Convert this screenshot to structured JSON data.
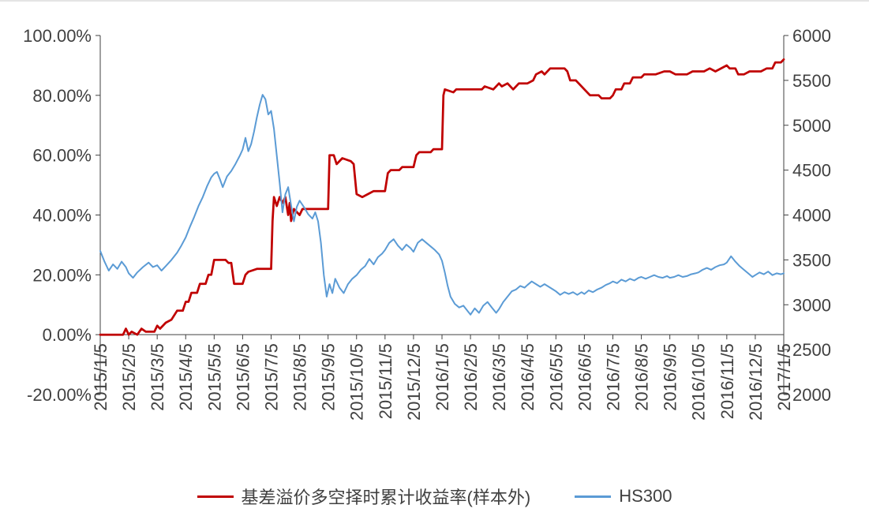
{
  "chart_data": {
    "type": "line",
    "title": "",
    "grid": false,
    "legend_position": "bottom",
    "x_axis": {
      "unit": "months from 2015/1/5",
      "range": [
        0,
        24
      ],
      "tick_labels": [
        "2015/1/5",
        "2015/2/5",
        "2015/3/5",
        "2015/4/5",
        "2015/5/5",
        "2015/6/5",
        "2015/7/5",
        "2015/8/5",
        "2015/9/5",
        "2015/10/5",
        "2015/11/5",
        "2015/12/5",
        "2016/1/5",
        "2016/2/5",
        "2016/3/5",
        "2016/4/5",
        "2016/5/5",
        "2016/6/5",
        "2016/7/5",
        "2016/8/5",
        "2016/9/5",
        "2016/10/5",
        "2016/11/5",
        "2016/12/5",
        "2017/1/5"
      ]
    },
    "y_left_axis": {
      "range": [
        -20,
        100
      ],
      "tick_values": [
        100,
        80,
        60,
        40,
        20,
        0,
        -20
      ],
      "tick_labels": [
        "100.00%",
        "80.00%",
        "60.00%",
        "40.00%",
        "20.00%",
        "0.00%",
        "-20.00%"
      ]
    },
    "y_right_axis": {
      "range": [
        2000,
        6000
      ],
      "tick_values": [
        6000,
        5500,
        5000,
        4500,
        4000,
        3500,
        3000,
        2500,
        2000
      ],
      "tick_labels": [
        "6000",
        "5500",
        "5000",
        "4500",
        "4000",
        "3500",
        "3000",
        "2500",
        "2000"
      ]
    },
    "series": [
      {
        "name": "基差溢价多空择时累计收益率(样本外)",
        "axis": "left",
        "unit": "%",
        "color": "#C00000",
        "line_width": 2.75,
        "x": [
          0,
          0.8,
          0.9,
          1.0,
          1.1,
          1.3,
          1.45,
          1.6,
          1.9,
          2.0,
          2.1,
          2.3,
          2.5,
          2.7,
          2.9,
          3.0,
          3.1,
          3.2,
          3.4,
          3.5,
          3.7,
          3.8,
          3.9,
          4.0,
          4.4,
          4.5,
          4.6,
          4.7,
          5.0,
          5.1,
          5.2,
          5.5,
          6.0,
          6.05,
          6.1,
          6.2,
          6.3,
          6.4,
          6.5,
          6.6,
          6.65,
          6.7,
          6.8,
          7.0,
          7.1,
          8.0,
          8.05,
          8.2,
          8.3,
          8.5,
          8.8,
          8.9,
          9.0,
          9.2,
          9.4,
          9.6,
          10.0,
          10.1,
          10.2,
          10.5,
          10.6,
          11.0,
          11.1,
          11.2,
          11.6,
          11.7,
          12.0,
          12.05,
          12.1,
          12.4,
          12.5,
          13.0,
          13.4,
          13.5,
          13.8,
          14.0,
          14.1,
          14.3,
          14.5,
          14.7,
          15.0,
          15.2,
          15.3,
          15.5,
          15.6,
          15.8,
          16.0,
          16.3,
          16.4,
          16.5,
          16.7,
          16.8,
          17.0,
          17.2,
          17.5,
          17.6,
          17.9,
          18.0,
          18.1,
          18.3,
          18.4,
          18.6,
          18.7,
          19.0,
          19.1,
          19.5,
          19.8,
          20.0,
          20.2,
          20.6,
          20.8,
          21.2,
          21.4,
          21.6,
          22.0,
          22.1,
          22.3,
          22.4,
          22.6,
          22.8,
          23.2,
          23.4,
          23.6,
          23.7,
          23.9,
          24.0
        ],
        "y": [
          0,
          0,
          2,
          0,
          1,
          0,
          2,
          1,
          1,
          3,
          2,
          4,
          5,
          8,
          8,
          11,
          11,
          14,
          14,
          17,
          17,
          20,
          20,
          25,
          25,
          24,
          24,
          17,
          17,
          20,
          21,
          22,
          22,
          38,
          46,
          43,
          46,
          44,
          46,
          40,
          44,
          38,
          42,
          40,
          42,
          42,
          60,
          60,
          57,
          59,
          58,
          57,
          47,
          46,
          47,
          48,
          48,
          54,
          55,
          55,
          56,
          56,
          60,
          61,
          61,
          62,
          62,
          80,
          82,
          81,
          82,
          82,
          82,
          83,
          82,
          84,
          83,
          84,
          82,
          84,
          84,
          85,
          87,
          88,
          87,
          89,
          89,
          89,
          88,
          85,
          85,
          84,
          82,
          80,
          80,
          79,
          79,
          80,
          82,
          82,
          84,
          84,
          86,
          86,
          87,
          87,
          88,
          88,
          87,
          87,
          88,
          88,
          89,
          88,
          90,
          89,
          89,
          87,
          87,
          88,
          88,
          89,
          89,
          91,
          91,
          92
        ]
      },
      {
        "name": "HS300",
        "axis": "right",
        "unit": "index points",
        "color": "#5B9BD5",
        "line_width": 2,
        "x": [
          0,
          0.15,
          0.3,
          0.45,
          0.6,
          0.75,
          0.9,
          1.0,
          1.15,
          1.3,
          1.5,
          1.7,
          1.85,
          2.0,
          2.15,
          2.3,
          2.5,
          2.7,
          2.85,
          3.0,
          3.15,
          3.3,
          3.45,
          3.6,
          3.75,
          3.9,
          4.0,
          4.1,
          4.2,
          4.3,
          4.45,
          4.6,
          4.75,
          4.9,
          5.0,
          5.1,
          5.2,
          5.3,
          5.4,
          5.5,
          5.6,
          5.7,
          5.8,
          5.9,
          6.0,
          6.1,
          6.2,
          6.3,
          6.4,
          6.5,
          6.6,
          6.7,
          6.8,
          6.9,
          7.0,
          7.15,
          7.3,
          7.45,
          7.55,
          7.65,
          7.75,
          7.85,
          7.95,
          8.05,
          8.15,
          8.25,
          8.4,
          8.55,
          8.7,
          8.85,
          9.0,
          9.15,
          9.3,
          9.45,
          9.6,
          9.75,
          9.9,
          10.0,
          10.15,
          10.3,
          10.45,
          10.6,
          10.75,
          10.9,
          11.0,
          11.15,
          11.3,
          11.45,
          11.6,
          11.75,
          11.9,
          12.0,
          12.1,
          12.2,
          12.3,
          12.45,
          12.6,
          12.75,
          12.9,
          13.0,
          13.15,
          13.3,
          13.45,
          13.6,
          13.75,
          13.9,
          14.0,
          14.15,
          14.3,
          14.45,
          14.6,
          14.75,
          14.9,
          15.0,
          15.15,
          15.3,
          15.45,
          15.6,
          15.75,
          15.9,
          16.0,
          16.15,
          16.3,
          16.45,
          16.6,
          16.75,
          16.9,
          17.0,
          17.15,
          17.3,
          17.45,
          17.6,
          17.75,
          17.9,
          18.0,
          18.15,
          18.3,
          18.45,
          18.6,
          18.75,
          18.9,
          19.0,
          19.15,
          19.3,
          19.45,
          19.6,
          19.75,
          19.9,
          20.0,
          20.15,
          20.3,
          20.45,
          20.6,
          20.75,
          20.9,
          21.0,
          21.15,
          21.3,
          21.45,
          21.6,
          21.75,
          21.9,
          22.0,
          22.15,
          22.3,
          22.45,
          22.6,
          22.75,
          22.9,
          23.0,
          23.15,
          23.3,
          23.45,
          23.6,
          23.75,
          23.9,
          24.0
        ],
        "y": [
          3600,
          3480,
          3380,
          3450,
          3400,
          3480,
          3420,
          3350,
          3300,
          3360,
          3420,
          3470,
          3420,
          3440,
          3380,
          3430,
          3500,
          3580,
          3660,
          3750,
          3870,
          3980,
          4100,
          4200,
          4320,
          4420,
          4460,
          4480,
          4400,
          4310,
          4430,
          4490,
          4570,
          4660,
          4730,
          4860,
          4710,
          4790,
          4930,
          5090,
          5230,
          5340,
          5290,
          5120,
          5160,
          4960,
          4660,
          4360,
          4030,
          4230,
          4310,
          4110,
          3930,
          4090,
          4160,
          4090,
          4010,
          3960,
          4030,
          3930,
          3690,
          3330,
          3090,
          3230,
          3130,
          3290,
          3190,
          3130,
          3230,
          3290,
          3330,
          3390,
          3430,
          3510,
          3450,
          3530,
          3570,
          3610,
          3690,
          3730,
          3660,
          3610,
          3670,
          3630,
          3590,
          3690,
          3730,
          3690,
          3650,
          3610,
          3560,
          3490,
          3360,
          3210,
          3090,
          3010,
          2970,
          2990,
          2930,
          2890,
          2960,
          2910,
          2990,
          3030,
          2970,
          2910,
          2950,
          3030,
          3090,
          3150,
          3170,
          3210,
          3190,
          3220,
          3260,
          3230,
          3200,
          3230,
          3200,
          3170,
          3150,
          3110,
          3140,
          3120,
          3140,
          3110,
          3140,
          3120,
          3160,
          3140,
          3170,
          3190,
          3220,
          3240,
          3260,
          3240,
          3280,
          3260,
          3290,
          3270,
          3300,
          3310,
          3290,
          3310,
          3330,
          3310,
          3300,
          3320,
          3300,
          3310,
          3330,
          3310,
          3320,
          3340,
          3350,
          3360,
          3390,
          3410,
          3390,
          3420,
          3440,
          3450,
          3470,
          3540,
          3480,
          3430,
          3390,
          3350,
          3310,
          3330,
          3360,
          3340,
          3370,
          3330,
          3350,
          3340,
          3350
        ]
      }
    ]
  },
  "colors": {
    "background": "#ffffff",
    "axis_line": "#404040",
    "axis_text": "#404040",
    "top_border": "#e4e4e4",
    "series_red": "#C00000",
    "series_blue": "#5B9BD5"
  }
}
